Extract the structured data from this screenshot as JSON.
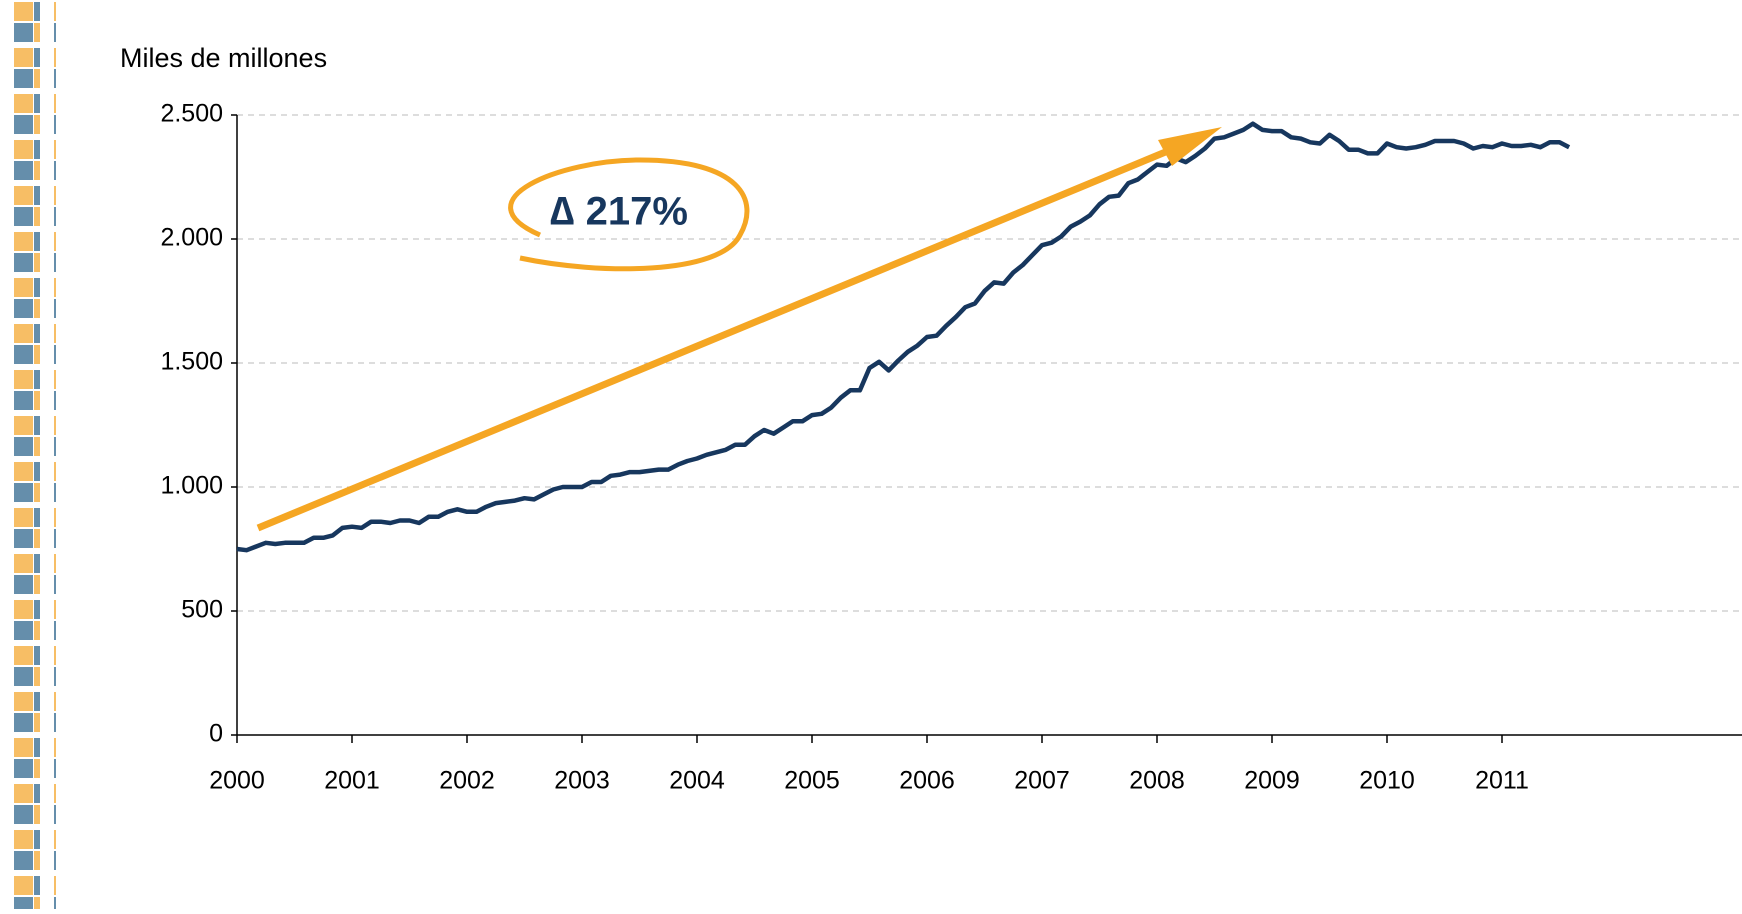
{
  "chart_data": {
    "type": "line",
    "y_label": "Miles de millones",
    "annotation": "∆ 217%",
    "categories": [
      "2000",
      null,
      null,
      null,
      null,
      null,
      null,
      null,
      null,
      null,
      null,
      null,
      "2001",
      null,
      null,
      null,
      null,
      null,
      null,
      null,
      null,
      null,
      null,
      null,
      "2002",
      null,
      null,
      null,
      null,
      null,
      null,
      null,
      null,
      null,
      null,
      null,
      "2003",
      null,
      null,
      null,
      null,
      null,
      null,
      null,
      null,
      null,
      null,
      null,
      "2004",
      null,
      null,
      null,
      null,
      null,
      null,
      null,
      null,
      null,
      null,
      null,
      "2005",
      null,
      null,
      null,
      null,
      null,
      null,
      null,
      null,
      null,
      null,
      null,
      "2006",
      null,
      null,
      null,
      null,
      null,
      null,
      null,
      null,
      null,
      null,
      null,
      "2007",
      null,
      null,
      null,
      null,
      null,
      null,
      null,
      null,
      null,
      null,
      null,
      "2008",
      null,
      null,
      null,
      null,
      null,
      null,
      null,
      null,
      null,
      null,
      null,
      "2009",
      null,
      null,
      null,
      null,
      null,
      null,
      null,
      null,
      null,
      null,
      null,
      "2010",
      null,
      null,
      null,
      null,
      null,
      null,
      null,
      null,
      null,
      null,
      null,
      "2011",
      null,
      null,
      null,
      null,
      null,
      null,
      null
    ],
    "values": [
      750,
      745,
      760,
      775,
      770,
      775,
      775,
      775,
      795,
      795,
      805,
      835,
      840,
      835,
      860,
      860,
      855,
      865,
      865,
      855,
      880,
      880,
      900,
      910,
      900,
      900,
      920,
      935,
      940,
      945,
      955,
      950,
      970,
      990,
      1000,
      1000,
      1000,
      1020,
      1020,
      1045,
      1050,
      1060,
      1060,
      1065,
      1070,
      1070,
      1090,
      1105,
      1115,
      1130,
      1140,
      1150,
      1170,
      1170,
      1205,
      1230,
      1215,
      1240,
      1265,
      1265,
      1290,
      1295,
      1320,
      1360,
      1390,
      1390,
      1480,
      1505,
      1470,
      1510,
      1545,
      1570,
      1605,
      1610,
      1650,
      1685,
      1725,
      1740,
      1790,
      1825,
      1820,
      1865,
      1895,
      1935,
      1975,
      1985,
      2010,
      2050,
      2070,
      2095,
      2140,
      2170,
      2175,
      2225,
      2240,
      2270,
      2300,
      2295,
      2325,
      2310,
      2335,
      2365,
      2405,
      2410,
      2425,
      2440,
      2465,
      2440,
      2435,
      2435,
      2410,
      2405,
      2390,
      2385,
      2420,
      2395,
      2360,
      2360,
      2345,
      2345,
      2385,
      2370,
      2365,
      2370,
      2380,
      2395,
      2395,
      2395,
      2385,
      2365,
      2375,
      2370,
      2385,
      2375,
      2375,
      2380,
      2370,
      2390,
      2390,
      2370
    ],
    "color": "#17375e",
    "ylim": [
      0,
      2500
    ],
    "yticks": [
      0,
      500,
      {
        "value": 1000,
        "label": "1.000"
      },
      {
        "value": 1500,
        "label": "1.500"
      },
      {
        "value": 2000,
        "label": "2.000"
      },
      {
        "value": 2500,
        "label": "2.500"
      }
    ],
    "grid": true
  }
}
